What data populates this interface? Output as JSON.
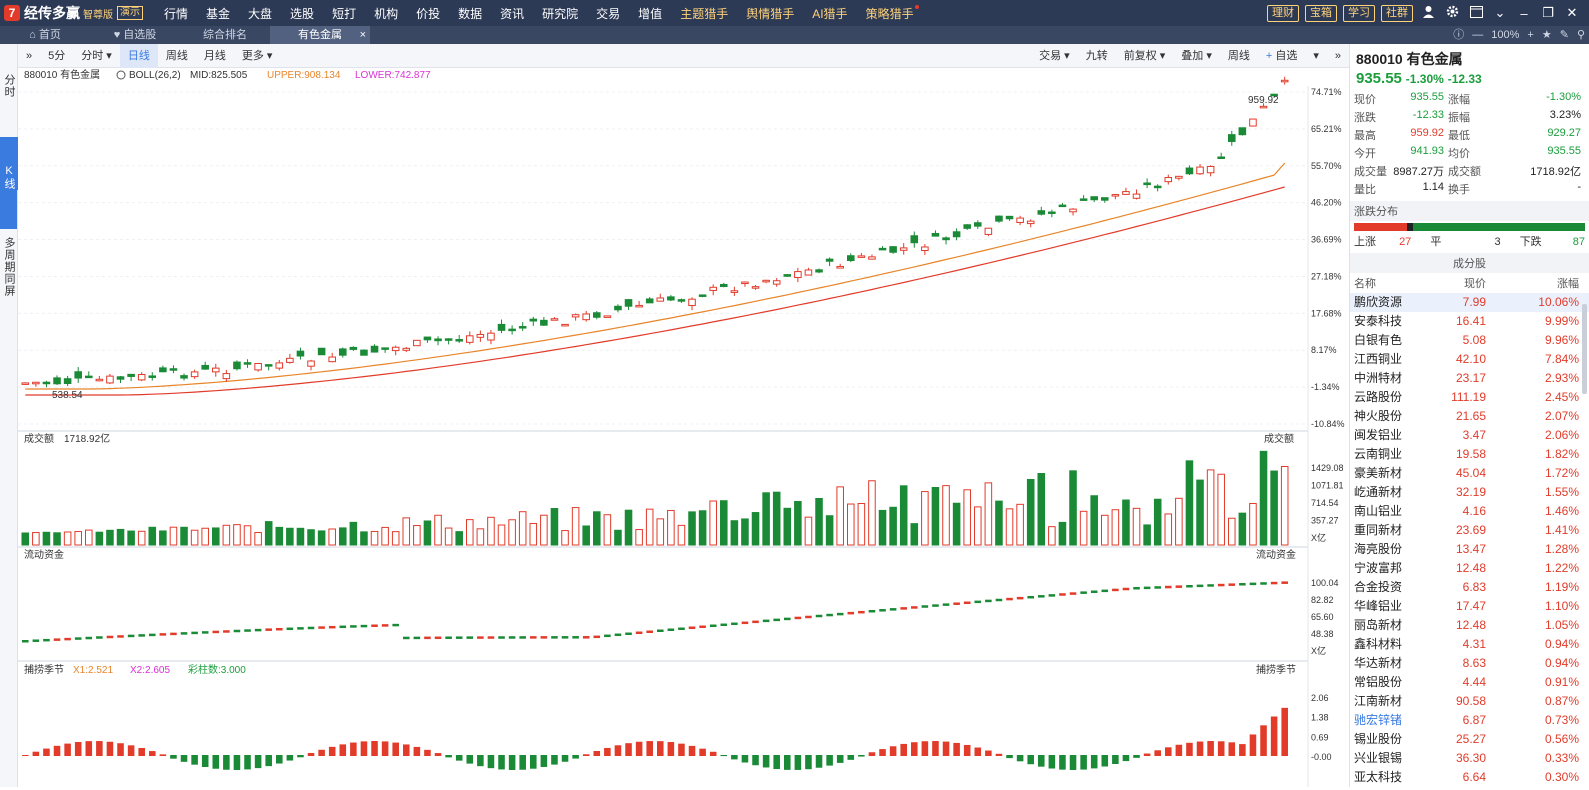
{
  "app": {
    "logo_mark": "7",
    "logo_text": "经传多赢",
    "logo_sub": "智尊版",
    "logo_badge": "演示"
  },
  "nav": [
    "行情",
    "基金",
    "大盘",
    "选股",
    "短打",
    "机构",
    "价投",
    "数据",
    "资讯",
    "研究院",
    "交易",
    "增值"
  ],
  "nav_hl": [
    "主题猎手",
    "舆情猎手",
    "AI猎手",
    "策略猎手"
  ],
  "top_pills": [
    "理财",
    "宝箱",
    "学习",
    "社群"
  ],
  "tabs": [
    "首页",
    "自选股",
    "综合排名",
    "有色金属"
  ],
  "zoom": "100%",
  "left_tabs": [
    "分时",
    "K线",
    "多周期同屏"
  ],
  "toolbar": {
    "left": [
      "5分",
      "分时 ▾",
      "日线",
      "周线",
      "月线",
      "更多 ▾"
    ],
    "right": [
      "交易 ▾",
      "九转",
      "前复权 ▾",
      "叠加 ▾",
      "周线",
      "自选",
      "▾"
    ]
  },
  "main": {
    "code_name": "880010 有色金属",
    "indicator": "BOLL(26,2)",
    "mid": "MID:825.505",
    "upper": "UPPER:908.134",
    "lower": "LOWER:742.877",
    "high_label": "959.92",
    "low_label": "538.54",
    "yaxis": [
      "74.71%",
      "65.21%",
      "55.70%",
      "46.20%",
      "36.69%",
      "27.18%",
      "17.68%",
      "8.17%",
      "-1.34%",
      "-10.84%"
    ]
  },
  "volume": {
    "title": "成交额",
    "value": "1718.92亿",
    "right_title": "成交额",
    "yaxis": [
      "1429.08",
      "1071.81",
      "714.54",
      "357.27",
      "X亿"
    ]
  },
  "flow": {
    "title": "流动资金",
    "right_title": "流动资金",
    "yaxis": [
      "100.04",
      "82.82",
      "65.60",
      "48.38",
      "X亿"
    ]
  },
  "capture": {
    "title": "捕捞季节",
    "x1": "X1:2.521",
    "x2": "X2:2.605",
    "bars": "彩柱数:3.000",
    "right_title": "捕捞季节",
    "yaxis": [
      "2.06",
      "1.38",
      "0.69",
      "-0.00"
    ]
  },
  "quote": {
    "title": "880010 有色金属",
    "price": "935.55",
    "chg_pct": "-1.30%",
    "chg": "-12.33",
    "rows": [
      [
        "现价",
        "935.55",
        "涨幅",
        "-1.30%"
      ],
      [
        "涨跌",
        "-12.33",
        "振幅",
        "3.23%"
      ],
      [
        "最高",
        "959.92",
        "最低",
        "929.27"
      ],
      [
        "今开",
        "941.93",
        "均价",
        "935.55"
      ],
      [
        "成交量",
        "8987.27万",
        "成交额",
        "1718.92亿"
      ],
      [
        "量比",
        "1.14",
        "换手",
        "-"
      ]
    ],
    "dist_title": "涨跌分布",
    "up_label": "上涨",
    "up": "27",
    "flat_label": "平",
    "flat": "3",
    "down_label": "下跌",
    "down": "87",
    "cf_title": "成分股",
    "headers": [
      "名称",
      "现价",
      "涨幅"
    ],
    "stocks": [
      [
        "鹏欣资源",
        "7.99",
        "10.06%"
      ],
      [
        "安泰科技",
        "16.41",
        "9.99%"
      ],
      [
        "白银有色",
        "5.08",
        "9.96%"
      ],
      [
        "江西铜业",
        "42.10",
        "7.84%"
      ],
      [
        "中洲特材",
        "23.17",
        "2.93%"
      ],
      [
        "云路股份",
        "111.19",
        "2.45%"
      ],
      [
        "神火股份",
        "21.65",
        "2.07%"
      ],
      [
        "闽发铝业",
        "3.47",
        "2.06%"
      ],
      [
        "云南铜业",
        "19.58",
        "1.82%"
      ],
      [
        "豪美新材",
        "45.04",
        "1.72%"
      ],
      [
        "屹通新材",
        "32.19",
        "1.55%"
      ],
      [
        "南山铝业",
        "4.16",
        "1.46%"
      ],
      [
        "重同新材",
        "23.69",
        "1.41%"
      ],
      [
        "海亮股份",
        "13.47",
        "1.28%"
      ],
      [
        "宁波富邦",
        "12.48",
        "1.22%"
      ],
      [
        "合金投资",
        "6.83",
        "1.19%"
      ],
      [
        "华峰铝业",
        "17.47",
        "1.10%"
      ],
      [
        "丽岛新材",
        "12.48",
        "1.05%"
      ],
      [
        "鑫科材料",
        "4.31",
        "0.94%"
      ],
      [
        "华达新材",
        "8.63",
        "0.94%"
      ],
      [
        "常铝股份",
        "4.44",
        "0.91%"
      ],
      [
        "江南新材",
        "90.58",
        "0.87%"
      ],
      [
        "驰宏锌锗",
        "6.87",
        "0.73%"
      ],
      [
        "锡业股份",
        "25.27",
        "0.56%"
      ],
      [
        "兴业银锡",
        "36.30",
        "0.33%"
      ],
      [
        "亚太科技",
        "6.64",
        "0.30%"
      ]
    ]
  },
  "colors": {
    "up": "#e23b2a",
    "down": "#1a8a36",
    "accent": "#3a7be0",
    "topbar": "#2d3a56"
  }
}
